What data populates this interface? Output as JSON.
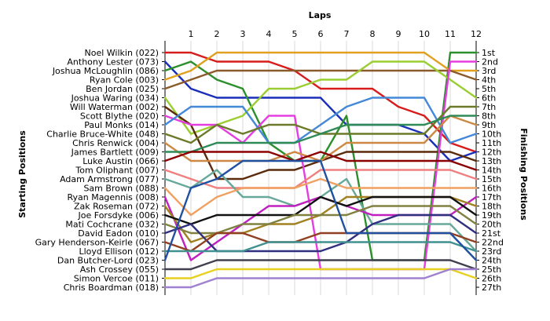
{
  "chart_data": {
    "type": "line",
    "x_title": "Laps",
    "left_title": "Starting Positions",
    "right_title": "Finishing Positions",
    "laps": [
      "1",
      "2",
      "3",
      "4",
      "5",
      "6",
      "7",
      "8",
      "9",
      "10",
      "11",
      "12"
    ],
    "finish_labels": [
      "1st",
      "2nd",
      "3rd",
      "4th",
      "5th",
      "6th",
      "7th",
      "8th",
      "9th",
      "10th",
      "11th",
      "12th",
      "13th",
      "14th",
      "15th",
      "16th",
      "17th",
      "18th",
      "19th",
      "20th",
      "21st",
      "22nd",
      "23rd",
      "24th",
      "25th",
      "26th",
      "27th"
    ],
    "series": [
      {
        "name": "Noel Wilkin (022)",
        "color": "#d81b1b",
        "positions": [
          1,
          1,
          2,
          2,
          2,
          3,
          5,
          5,
          5,
          7,
          8,
          11,
          12
        ]
      },
      {
        "name": "Anthony Lester (073)",
        "color": "#1a2fb8",
        "positions": [
          2,
          5,
          6,
          6,
          6,
          6,
          6,
          9,
          9,
          9,
          10,
          13,
          12
        ]
      },
      {
        "name": "Joshua McLoughlin (086)",
        "color": "#2b8f2b",
        "positions": [
          3,
          2,
          4,
          5,
          11,
          13,
          13,
          8,
          24,
          24,
          24,
          1,
          1
        ]
      },
      {
        "name": "Ryan Cole (003)",
        "color": "#e0a020",
        "positions": [
          4,
          3,
          1,
          1,
          1,
          1,
          1,
          1,
          1,
          1,
          1,
          3,
          3
        ]
      },
      {
        "name": "Ben Jordan (025)",
        "color": "#8b5a2b",
        "positions": [
          5,
          4,
          3,
          3,
          3,
          3,
          3,
          3,
          3,
          3,
          3,
          3,
          4
        ]
      },
      {
        "name": "Joshua Waring (034)",
        "color": "#9acd32",
        "positions": [
          6,
          10,
          9,
          8,
          5,
          5,
          4,
          4,
          2,
          2,
          2,
          4,
          6
        ]
      },
      {
        "name": "Will Waterman (002)",
        "color": "#5a2a0a",
        "positions": [
          7,
          9,
          15,
          15,
          14,
          14,
          13,
          12,
          12,
          12,
          12,
          12,
          13
        ]
      },
      {
        "name": "Scott Blythe (020)",
        "color": "#e53ee0",
        "positions": [
          8,
          9,
          9,
          11,
          8,
          8,
          25,
          25,
          25,
          25,
          25,
          2,
          2
        ]
      },
      {
        "name": "Paul Monks (014)",
        "color": "#4488d8",
        "positions": [
          9,
          7,
          7,
          7,
          11,
          11,
          9,
          7,
          6,
          6,
          6,
          11,
          10
        ]
      },
      {
        "name": "Charlie Bruce-White (048)",
        "color": "#6b7a2a",
        "positions": [
          10,
          11,
          9,
          10,
          9,
          9,
          10,
          10,
          10,
          10,
          10,
          7,
          7
        ]
      },
      {
        "name": "Chris Renwick (004)",
        "color": "#cc8844",
        "positions": [
          11,
          13,
          13,
          13,
          13,
          12,
          13,
          11,
          11,
          11,
          11,
          8,
          9
        ]
      },
      {
        "name": "James Bartlett (009)",
        "color": "#2e8b57",
        "positions": [
          12,
          12,
          11,
          11,
          11,
          11,
          10,
          9,
          9,
          9,
          9,
          8,
          8
        ]
      },
      {
        "name": "Luke Austin (066)",
        "color": "#8b0000",
        "positions": [
          13,
          12,
          12,
          12,
          12,
          13,
          12,
          13,
          13,
          13,
          13,
          13,
          14
        ]
      },
      {
        "name": "Tom Oliphant (007)",
        "color": "#f08080",
        "positions": [
          14,
          15,
          16,
          16,
          16,
          16,
          14,
          14,
          14,
          14,
          14,
          14,
          15
        ]
      },
      {
        "name": "Adam Armstrong (077)",
        "color": "#66a89a",
        "positions": [
          15,
          16,
          14,
          17,
          17,
          18,
          17,
          15,
          20,
          20,
          20,
          20,
          23
        ]
      },
      {
        "name": "Sam Brown (088)",
        "color": "#f0a060",
        "positions": [
          16,
          19,
          17,
          16,
          16,
          16,
          15,
          16,
          16,
          16,
          16,
          16,
          16
        ]
      },
      {
        "name": "Ryan Magennis (008)",
        "color": "#c020c0",
        "positions": [
          17,
          24,
          22,
          20,
          18,
          18,
          17,
          18,
          19,
          19,
          19,
          19,
          17
        ]
      },
      {
        "name": "Zak Roseman (072)",
        "color": "#a08020",
        "positions": [
          18,
          22,
          21,
          21,
          20,
          20,
          19,
          17,
          17,
          17,
          17,
          17,
          18
        ]
      },
      {
        "name": "Joe Forsdyke (006)",
        "color": "#111111",
        "positions": [
          19,
          20,
          19,
          19,
          19,
          19,
          17,
          18,
          17,
          17,
          17,
          17,
          19
        ]
      },
      {
        "name": "Mati Cochcrane (032)",
        "color": "#808040",
        "positions": [
          20,
          21,
          21,
          20,
          20,
          19,
          19,
          19,
          18,
          18,
          18,
          18,
          20
        ]
      },
      {
        "name": "David Eadon (010)",
        "color": "#303080",
        "positions": [
          21,
          20,
          23,
          23,
          23,
          23,
          23,
          22,
          20,
          19,
          19,
          19,
          21
        ]
      },
      {
        "name": "Gary Henderson-Keirle (067)",
        "color": "#904020",
        "positions": [
          22,
          23,
          21,
          21,
          22,
          22,
          21,
          21,
          21,
          21,
          21,
          21,
          22
        ]
      },
      {
        "name": "Lloyd Ellison (012)",
        "color": "#409090",
        "positions": [
          23,
          23,
          23,
          23,
          22,
          22,
          22,
          22,
          22,
          22,
          22,
          22,
          23
        ]
      },
      {
        "name": "Dan Butcher-Lord (023)",
        "color": "#2050a0",
        "positions": [
          24,
          16,
          15,
          13,
          13,
          13,
          13,
          21,
          21,
          21,
          21,
          21,
          24
        ]
      },
      {
        "name": "Ash Crossey (055)",
        "color": "#404050",
        "positions": [
          25,
          25,
          24,
          24,
          24,
          24,
          24,
          24,
          24,
          24,
          24,
          24,
          25
        ]
      },
      {
        "name": "Simon Vercoe (011)",
        "color": "#e8d020",
        "positions": [
          26,
          26,
          25,
          25,
          25,
          25,
          25,
          25,
          25,
          25,
          25,
          25,
          26
        ]
      },
      {
        "name": "Chris Boardman (018)",
        "color": "#a080d0",
        "positions": [
          27,
          27,
          26,
          26,
          26,
          26,
          26,
          26,
          26,
          26,
          26,
          25,
          25
        ]
      }
    ]
  }
}
